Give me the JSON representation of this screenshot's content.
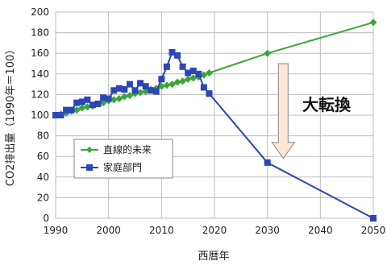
{
  "chart_data": {
    "type": "line",
    "xlabel": "西暦年",
    "ylabel": "CO2排出量（1990年＝100）",
    "xlim": [
      1990,
      2050
    ],
    "ylim": [
      0,
      200
    ],
    "x_ticks": [
      1990,
      2000,
      2010,
      2020,
      2030,
      2040,
      2050
    ],
    "y_ticks": [
      0,
      20,
      40,
      60,
      80,
      100,
      120,
      140,
      160,
      180,
      200
    ],
    "grid": true,
    "legend_position": "left-middle",
    "annotation": {
      "text": "大転換",
      "arrow_from": [
        2033,
        150
      ],
      "arrow_to": [
        2033,
        58
      ]
    },
    "series": [
      {
        "name": "直線的未来",
        "color": "#3aa63a",
        "marker": "diamond",
        "points": [
          [
            1990,
            100
          ],
          [
            1991,
            101
          ],
          [
            1992,
            102
          ],
          [
            1993,
            104
          ],
          [
            1994,
            105
          ],
          [
            1995,
            107
          ],
          [
            1996,
            108
          ],
          [
            1997,
            109
          ],
          [
            1998,
            111
          ],
          [
            1999,
            112
          ],
          [
            2000,
            114
          ],
          [
            2001,
            115
          ],
          [
            2002,
            116
          ],
          [
            2003,
            118
          ],
          [
            2004,
            119
          ],
          [
            2005,
            121
          ],
          [
            2006,
            122
          ],
          [
            2007,
            123
          ],
          [
            2008,
            125
          ],
          [
            2009,
            126
          ],
          [
            2010,
            128
          ],
          [
            2011,
            129
          ],
          [
            2012,
            130
          ],
          [
            2013,
            132
          ],
          [
            2014,
            133
          ],
          [
            2015,
            135
          ],
          [
            2016,
            136
          ],
          [
            2017,
            137
          ],
          [
            2018,
            139
          ],
          [
            2019,
            141
          ],
          [
            2030,
            160
          ],
          [
            2050,
            190
          ]
        ]
      },
      {
        "name": "家庭部門",
        "color": "#2c46b5",
        "marker": "square",
        "points": [
          [
            1990,
            100
          ],
          [
            1991,
            100
          ],
          [
            1992,
            105
          ],
          [
            1993,
            105
          ],
          [
            1994,
            112
          ],
          [
            1995,
            113
          ],
          [
            1996,
            115
          ],
          [
            1997,
            110
          ],
          [
            1998,
            111
          ],
          [
            1999,
            117
          ],
          [
            2000,
            116
          ],
          [
            2001,
            124
          ],
          [
            2002,
            126
          ],
          [
            2003,
            125
          ],
          [
            2004,
            130
          ],
          [
            2005,
            124
          ],
          [
            2006,
            131
          ],
          [
            2007,
            128
          ],
          [
            2008,
            124
          ],
          [
            2009,
            123
          ],
          [
            2010,
            135
          ],
          [
            2011,
            147
          ],
          [
            2012,
            161
          ],
          [
            2013,
            158
          ],
          [
            2014,
            147
          ],
          [
            2015,
            141
          ],
          [
            2016,
            143
          ],
          [
            2017,
            140
          ],
          [
            2018,
            127
          ],
          [
            2019,
            121
          ],
          [
            2030,
            54
          ],
          [
            2050,
            0
          ]
        ]
      }
    ]
  }
}
